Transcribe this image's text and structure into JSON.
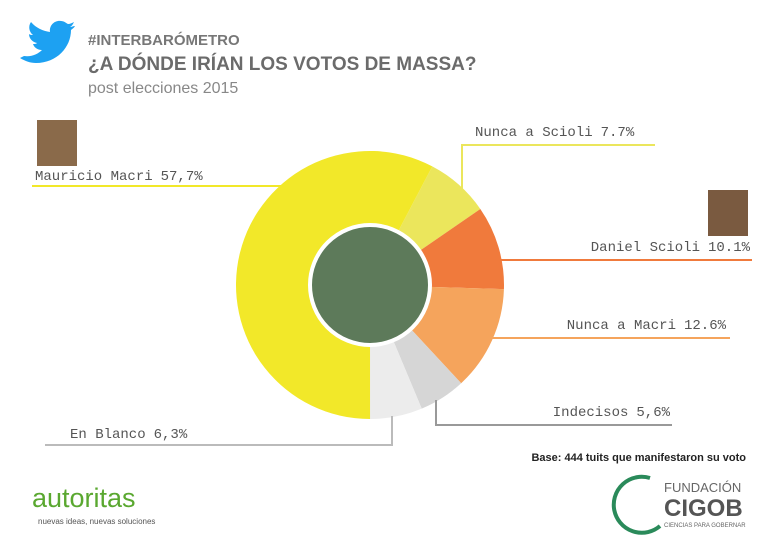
{
  "chart_data": {
    "type": "donut",
    "hashtag": "#INTERBARÓMETRO",
    "title": "¿A DÓNDE IRÍAN LOS VOTOS DE MASSA?",
    "subtitle": "post elecciones 2015",
    "categories": [
      "Nunca a Scioli",
      "Daniel Scioli",
      "Nunca a Macri",
      "Indecisos",
      "En Blanco",
      "Mauricio Macri"
    ],
    "values": [
      7.7,
      10.1,
      12.6,
      5.6,
      6.3,
      57.7
    ],
    "value_labels": [
      "7.7%",
      "10.1%",
      "12.6%",
      "5,6%",
      "6,3%",
      "57,7%"
    ],
    "colors": [
      "#ebe65c",
      "#f07a3c",
      "#f5a45c",
      "#d6d6d6",
      "#ececec",
      "#f2e829"
    ],
    "note": "Base: 444 tuits que manifestaron su voto"
  },
  "logos": {
    "left_name": "autoritas",
    "left_tagline": "nuevas ideas, nuevas soluciones",
    "right_top": "FUNDACIÓN",
    "right_name": "CIGOB",
    "right_tagline": "CIENCIAS PARA GOBERNAR"
  }
}
